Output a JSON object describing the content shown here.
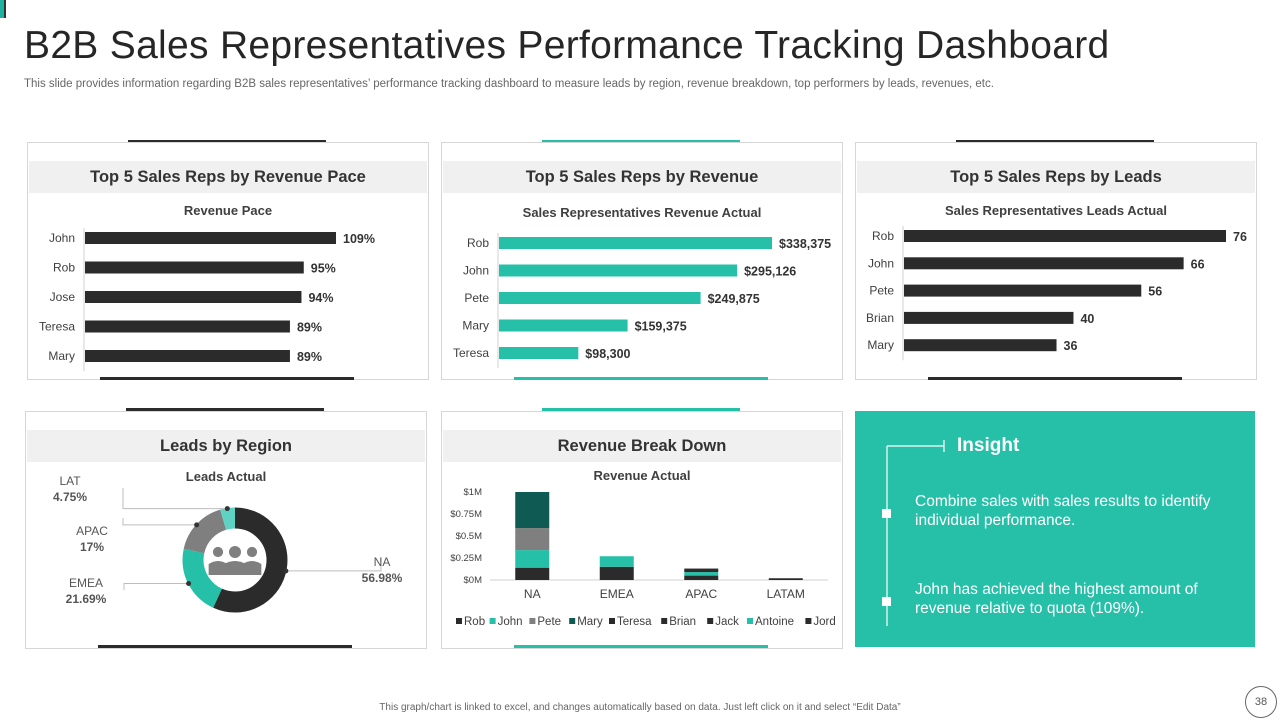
{
  "title": "B2B Sales Representatives Performance Tracking Dashboard",
  "subtitle": "This slide provides information regarding B2B sales representatives’ performance tracking dashboard to measure leads by region, revenue breakdown, top performers by leads, revenues, etc.",
  "panels": {
    "revenue_pace": {
      "heading": "Top 5 Sales Reps by Revenue Pace"
    },
    "revenue": {
      "heading": "Top 5 Sales Reps by Revenue"
    },
    "leads": {
      "heading": "Top 5 Sales Reps by Leads"
    },
    "region": {
      "heading": "Leads by Region"
    },
    "breakdown": {
      "heading": "Revenue Break Down"
    }
  },
  "insight": {
    "title": "Insight",
    "point1": "Combine sales with sales results to identify individual performance.",
    "point2": "John has achieved the highest amount of revenue relative to quota (109%)."
  },
  "footer": "This graph/chart is linked to excel, and changes automatically based on data. Just left click on it and select “Edit Data”",
  "page_number": "38",
  "colors": {
    "teal": "#26bfa8",
    "dark": "#2b2b2b",
    "gray": "#7f7f7f",
    "dark_teal": "#0f5a52"
  },
  "icons": {
    "region_center": "people-group-icon"
  },
  "chart_data": [
    {
      "id": "revenue_pace",
      "type": "bar",
      "orientation": "horizontal",
      "title": "Revenue Pace",
      "categories": [
        "John",
        "Rob",
        "Jose",
        "Teresa",
        "Mary"
      ],
      "values": [
        109,
        95,
        94,
        89,
        89
      ],
      "labels": [
        "109%",
        "95%",
        "94%",
        "89%",
        "89%"
      ]
    },
    {
      "id": "revenue",
      "type": "bar",
      "orientation": "horizontal",
      "title": "Sales Representatives Revenue Actual",
      "categories": [
        "Rob",
        "John",
        "Pete",
        "Mary",
        "Teresa"
      ],
      "values": [
        338375,
        295126,
        249875,
        159375,
        98300
      ],
      "labels": [
        "$338,375",
        "$295,126",
        "$249,875",
        "$159,375",
        "$98,300"
      ]
    },
    {
      "id": "leads",
      "type": "bar",
      "orientation": "horizontal",
      "title": "Sales Representatives Leads Actual",
      "categories": [
        "Rob",
        "John",
        "Pete",
        "Brian",
        "Mary"
      ],
      "values": [
        76,
        66,
        56,
        40,
        36
      ],
      "labels": [
        "76",
        "66",
        "56",
        "40",
        "36"
      ]
    },
    {
      "id": "region",
      "type": "pie",
      "title": "Leads Actual",
      "slices": [
        {
          "name": "NA",
          "value": 56.98,
          "label": "56.98%",
          "color": "#2b2b2b"
        },
        {
          "name": "EMEA",
          "value": 21.69,
          "label": "21.69%",
          "color": "#26bfa8"
        },
        {
          "name": "APAC",
          "value": 17,
          "label": "17%",
          "color": "#7f7f7f"
        },
        {
          "name": "LAT",
          "value": 4.75,
          "label": "4.75%",
          "color": "#5fd3c3"
        }
      ]
    },
    {
      "id": "breakdown",
      "type": "bar",
      "stacked": true,
      "title": "Revenue Actual",
      "categories": [
        "NA",
        "EMEA",
        "APAC",
        "LATAM"
      ],
      "yticks": [
        "$0M",
        "$0.25M",
        "$0.5M",
        "$0.75M",
        "$1M"
      ],
      "ylim": [
        0,
        1
      ],
      "series": [
        {
          "name": "Rob",
          "color": "#2b2b2b",
          "values": [
            0.14,
            0.15,
            0.05,
            0.02
          ]
        },
        {
          "name": "John",
          "color": "#26bfa8",
          "values": [
            0.2,
            0.12,
            0.04,
            0.0
          ]
        },
        {
          "name": "Pete",
          "color": "#7f7f7f",
          "values": [
            0.25,
            0.0,
            0.0,
            0.0
          ]
        },
        {
          "name": "Mary",
          "color": "#0f5a52",
          "values": [
            0.41,
            0.0,
            0.0,
            0.0
          ]
        },
        {
          "name": "Teresa",
          "color": "#2b2b2b",
          "values": [
            0,
            0,
            0,
            0
          ]
        },
        {
          "name": "Brian",
          "color": "#2b2b2b",
          "values": [
            0,
            0,
            0.04,
            0
          ]
        },
        {
          "name": "Jack",
          "color": "#2b2b2b",
          "values": [
            0,
            0,
            0,
            0
          ]
        },
        {
          "name": "Antoine",
          "color": "#26bfa8",
          "values": [
            0,
            0,
            0,
            0
          ]
        },
        {
          "name": "Jord",
          "color": "#2b2b2b",
          "values": [
            0,
            0,
            0,
            0
          ]
        }
      ]
    }
  ]
}
